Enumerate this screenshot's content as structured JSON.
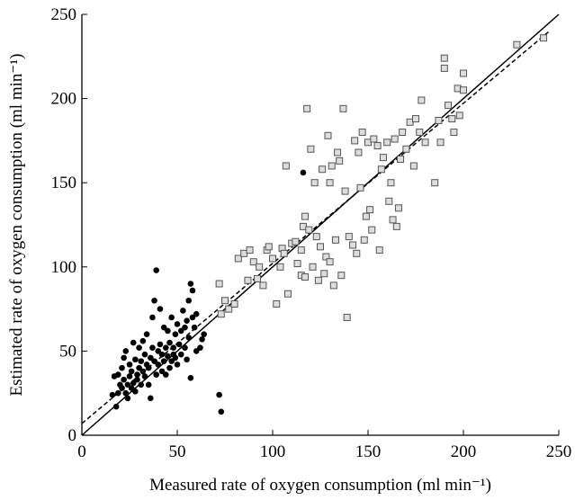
{
  "chart_data": {
    "type": "scatter",
    "xlabel": "Measured rate of oxygen consumption (ml min⁻¹)",
    "ylabel": "Estimated rate of oxygen consumption (ml min⁻¹)",
    "xlim": [
      0,
      250
    ],
    "ylim": [
      0,
      250
    ],
    "xticks": [
      0,
      50,
      100,
      150,
      200,
      250
    ],
    "yticks": [
      0,
      50,
      100,
      150,
      200,
      250
    ],
    "grid": false,
    "series": [
      {
        "marker": "circle",
        "color": "#000000",
        "x": [
          16,
          17,
          18,
          19,
          19,
          20,
          21,
          21,
          22,
          22,
          23,
          23,
          24,
          24,
          25,
          25,
          26,
          26,
          27,
          27,
          28,
          28,
          29,
          29,
          30,
          30,
          31,
          31,
          32,
          32,
          33,
          33,
          34,
          34,
          35,
          35,
          36,
          36,
          37,
          37,
          38,
          38,
          39,
          39,
          40,
          40,
          41,
          41,
          42,
          42,
          43,
          43,
          44,
          44,
          45,
          45,
          46,
          46,
          47,
          47,
          48,
          48,
          49,
          49,
          50,
          50,
          51,
          52,
          52,
          53,
          54,
          54,
          55,
          55,
          56,
          56,
          57,
          57,
          58,
          58,
          59,
          60,
          60,
          62,
          63,
          64,
          72,
          73,
          116
        ],
        "values": [
          24,
          35,
          17,
          25,
          36,
          30,
          28,
          40,
          46,
          33,
          25,
          50,
          30,
          22,
          35,
          42,
          28,
          38,
          31,
          55,
          45,
          26,
          36,
          33,
          52,
          40,
          30,
          44,
          38,
          56,
          48,
          35,
          42,
          60,
          40,
          30,
          46,
          22,
          70,
          52,
          44,
          80,
          98,
          36,
          50,
          42,
          54,
          75,
          38,
          48,
          64,
          44,
          52,
          36,
          47,
          62,
          40,
          55,
          44,
          70,
          52,
          48,
          60,
          46,
          66,
          42,
          54,
          62,
          48,
          74,
          64,
          52,
          68,
          45,
          58,
          80,
          90,
          34,
          70,
          86,
          64,
          72,
          50,
          52,
          57,
          60,
          24,
          14,
          156
        ]
      },
      {
        "marker": "square",
        "color": "#555555",
        "x": [
          72,
          73,
          75,
          77,
          80,
          82,
          85,
          87,
          88,
          90,
          92,
          93,
          95,
          97,
          98,
          100,
          102,
          104,
          105,
          106,
          107,
          108,
          110,
          112,
          113,
          115,
          115,
          116,
          117,
          117,
          118,
          119,
          120,
          121,
          122,
          123,
          124,
          125,
          126,
          127,
          128,
          129,
          130,
          130,
          131,
          132,
          133,
          134,
          135,
          136,
          137,
          138,
          139,
          140,
          142,
          143,
          144,
          145,
          146,
          147,
          148,
          149,
          150,
          151,
          152,
          153,
          155,
          156,
          157,
          158,
          160,
          161,
          162,
          163,
          164,
          165,
          166,
          167,
          168,
          170,
          172,
          174,
          175,
          177,
          178,
          180,
          185,
          187,
          188,
          190,
          190,
          192,
          194,
          195,
          197,
          198,
          200,
          200,
          228,
          242
        ],
        "values": [
          90,
          72,
          80,
          75,
          78,
          105,
          108,
          92,
          110,
          103,
          93,
          100,
          89,
          110,
          112,
          105,
          78,
          100,
          111,
          108,
          160,
          84,
          114,
          115,
          102,
          110,
          95,
          124,
          130,
          94,
          194,
          122,
          170,
          100,
          150,
          118,
          92,
          112,
          158,
          96,
          106,
          178,
          150,
          103,
          160,
          89,
          116,
          168,
          163,
          95,
          194,
          145,
          70,
          118,
          113,
          175,
          108,
          168,
          147,
          180,
          116,
          130,
          174,
          134,
          122,
          176,
          172,
          110,
          158,
          165,
          174,
          139,
          150,
          128,
          176,
          124,
          135,
          164,
          180,
          170,
          186,
          160,
          188,
          180,
          199,
          174,
          150,
          187,
          174,
          224,
          218,
          196,
          188,
          180,
          206,
          190,
          215,
          205,
          232,
          236
        ]
      }
    ],
    "lines": [
      {
        "style": "solid",
        "x": [
          0,
          250
        ],
        "values": [
          0,
          250
        ]
      },
      {
        "style": "dashed",
        "x": [
          0,
          245
        ],
        "values": [
          7,
          240
        ]
      }
    ]
  }
}
